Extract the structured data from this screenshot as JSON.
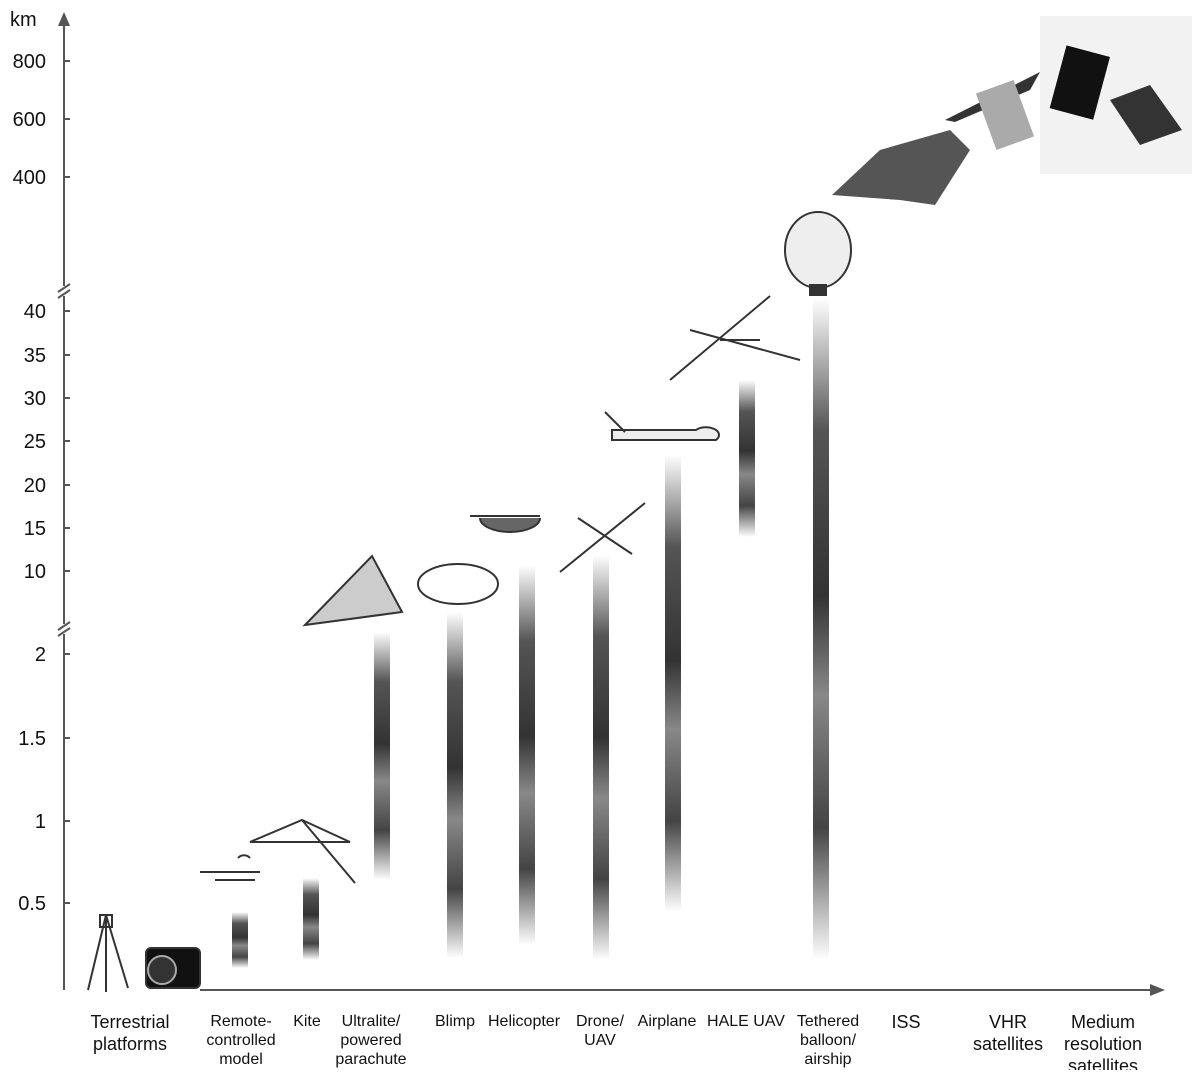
{
  "axis": {
    "unit": "km",
    "ticks": [
      "800",
      "600",
      "400",
      "40",
      "35",
      "30",
      "25",
      "20",
      "15",
      "10",
      "2",
      "1.5",
      "1",
      "0.5"
    ]
  },
  "platforms": [
    {
      "lines": [
        "Terrestrial",
        "platforms"
      ]
    },
    {
      "lines": [
        "Remote-",
        "controlled",
        "model"
      ]
    },
    {
      "lines": [
        "Kite"
      ]
    },
    {
      "lines": [
        "Ultralite/",
        "powered",
        "parachute"
      ]
    },
    {
      "lines": [
        "Blimp"
      ]
    },
    {
      "lines": [
        "Helicopter"
      ]
    },
    {
      "lines": [
        "Drone/",
        "UAV"
      ]
    },
    {
      "lines": [
        "Airplane"
      ]
    },
    {
      "lines": [
        "HALE UAV"
      ]
    },
    {
      "lines": [
        "Tethered",
        "balloon/",
        "airship"
      ]
    },
    {
      "lines": [
        "ISS"
      ]
    },
    {
      "lines": [
        "VHR",
        "satellites"
      ]
    },
    {
      "lines": [
        "Medium",
        "resolution",
        "satellites"
      ]
    }
  ]
}
